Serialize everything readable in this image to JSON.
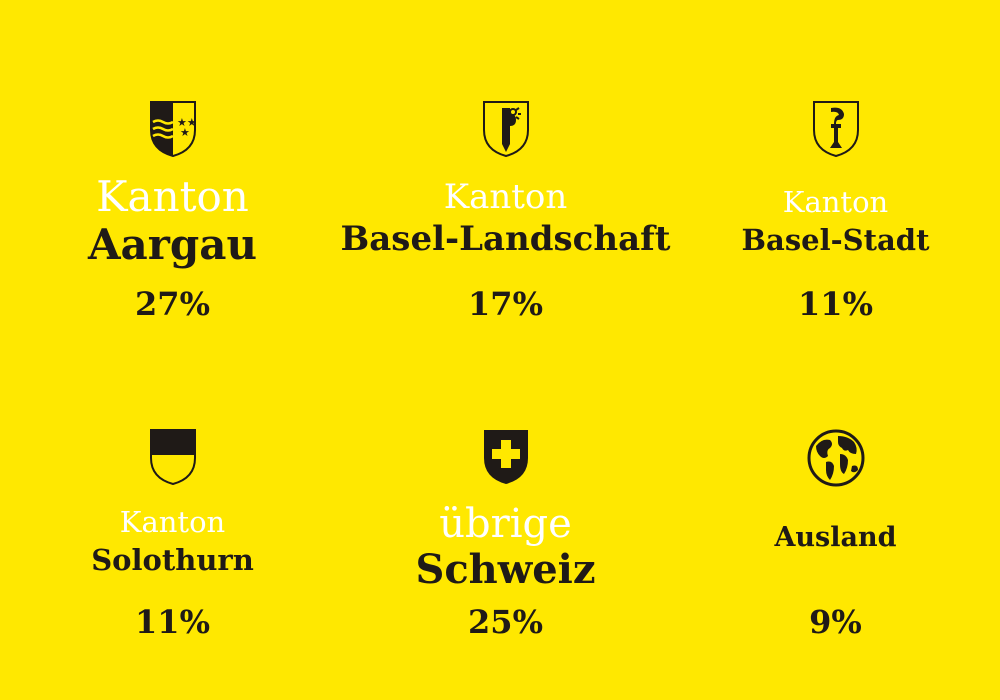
{
  "colors": {
    "background": "#FFE800",
    "highlight": "#FFFFFF",
    "text": "#1F1A17"
  },
  "regions": [
    {
      "emblem": "aargau-coat-of-arms-icon",
      "line1": "Kanton",
      "line2": "Aargau",
      "percent": "27%",
      "share": 27
    },
    {
      "emblem": "basel-landschaft-coat-of-arms-icon",
      "line1": "Kanton",
      "line2": "Basel-Landschaft",
      "percent": "17%",
      "share": 17
    },
    {
      "emblem": "basel-stadt-coat-of-arms-icon",
      "line1": "Kanton",
      "line2": "Basel-Stadt",
      "percent": "11%",
      "share": 11
    },
    {
      "emblem": "solothurn-coat-of-arms-icon",
      "line1": "Kanton",
      "line2": "Solothurn",
      "percent": "11%",
      "share": 11
    },
    {
      "emblem": "swiss-cross-shield-icon",
      "line1": "übrige",
      "line2": "Schweiz",
      "percent": "25%",
      "share": 25
    },
    {
      "emblem": "globe-icon",
      "line1": "",
      "line2": "Ausland",
      "percent": "9%",
      "share": 9
    }
  ]
}
